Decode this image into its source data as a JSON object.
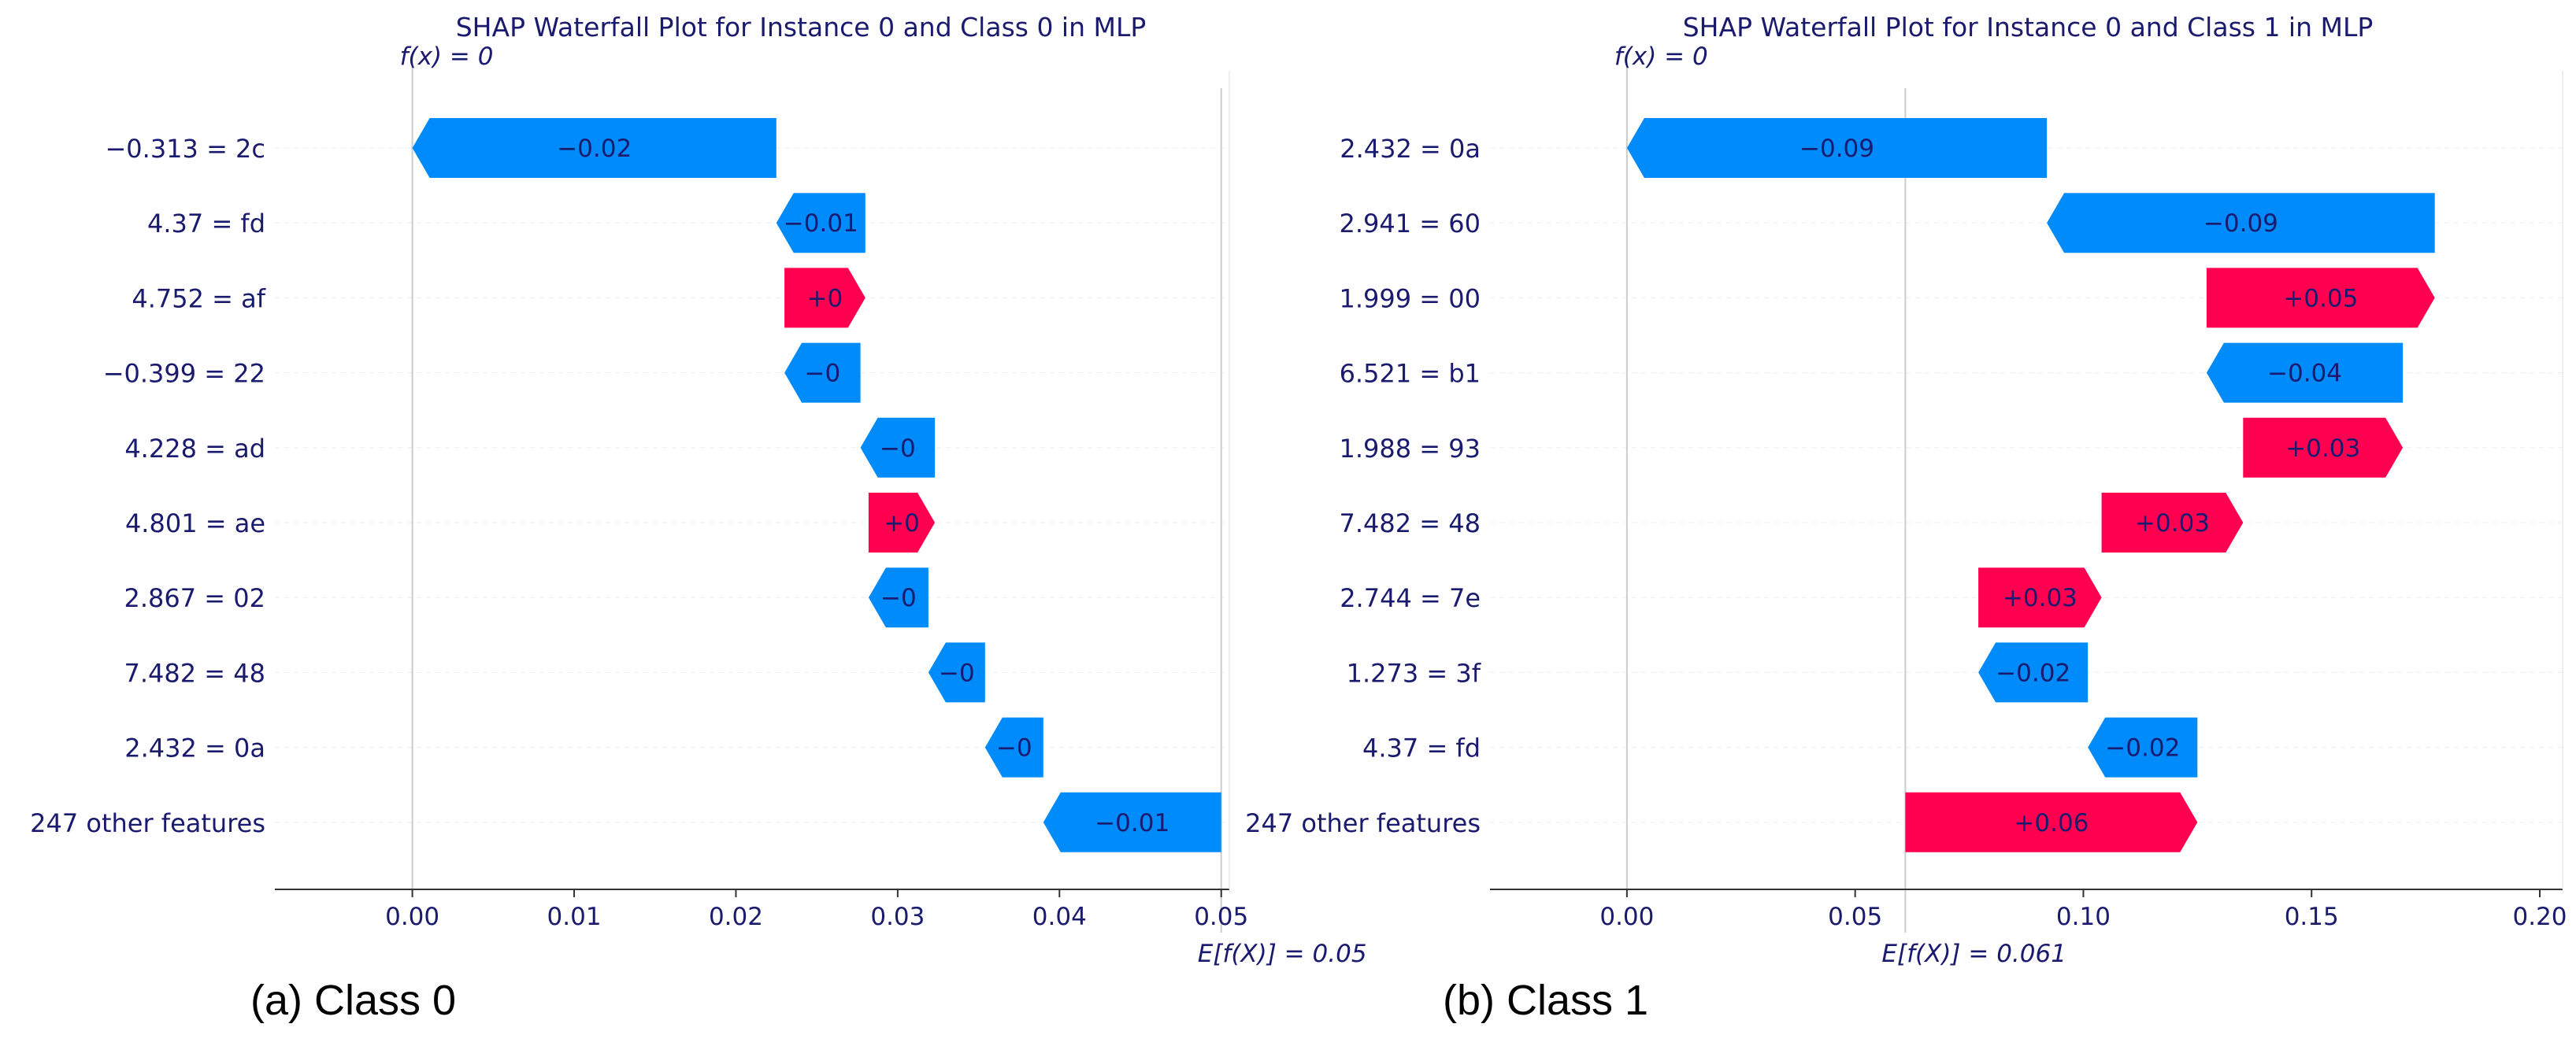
{
  "colors": {
    "negative": "#008bfb",
    "positive": "#ff0051",
    "text": "#1a1a6e",
    "gridline": "#eeeeee",
    "axis": "#333333"
  },
  "chart_data": [
    {
      "type": "waterfall",
      "title": "SHAP Waterfall Plot for Instance 0 and Class 0 in MLP",
      "fx_label": "f(x) = 0",
      "ex_label": "E[f(X)] = 0.05",
      "fx": 0.0,
      "base_value": 0.05,
      "xlim": [
        -0.0085,
        0.0505
      ],
      "xticks": [
        0.0,
        0.01,
        0.02,
        0.03,
        0.04,
        0.05
      ],
      "xtick_labels": [
        "0.00",
        "0.01",
        "0.02",
        "0.03",
        "0.04",
        "0.05"
      ],
      "features": [
        {
          "label": "−0.313 = 2c",
          "shap": -0.0225,
          "text": "−0.02"
        },
        {
          "label": "4.37 = fd",
          "shap": -0.0055,
          "text": "−0.01"
        },
        {
          "label": "4.752 = af",
          "shap": 0.005,
          "text": "+0"
        },
        {
          "label": "−0.399 = 22",
          "shap": -0.0047,
          "text": "−0"
        },
        {
          "label": "4.228 = ad",
          "shap": -0.0046,
          "text": "−0"
        },
        {
          "label": "4.801 = ae",
          "shap": 0.0041,
          "text": "+0"
        },
        {
          "label": "2.867 = 02",
          "shap": -0.0037,
          "text": "−0"
        },
        {
          "label": "7.482 = 48",
          "shap": -0.0035,
          "text": "−0"
        },
        {
          "label": "2.432 = 0a",
          "shap": -0.0036,
          "text": "−0"
        },
        {
          "label": "247 other features",
          "shap": -0.011,
          "text": "−0.01"
        }
      ]
    },
    {
      "type": "waterfall",
      "title": "SHAP Waterfall Plot for Instance 0 and Class 1 in MLP",
      "fx_label": "f(x) = 0",
      "ex_label": "E[f(X)] = 0.061",
      "fx": 0.0,
      "base_value": 0.061,
      "xlim": [
        -0.03,
        0.205
      ],
      "xticks": [
        0.0,
        0.05,
        0.1,
        0.15,
        0.2
      ],
      "xtick_labels": [
        "0.00",
        "0.05",
        "0.10",
        "0.15",
        "0.20"
      ],
      "features": [
        {
          "label": "2.432 = 0a",
          "shap": -0.092,
          "text": "−0.09"
        },
        {
          "label": "2.941 = 60",
          "shap": -0.085,
          "text": "−0.09"
        },
        {
          "label": "1.999 = 00",
          "shap": 0.05,
          "text": "+0.05"
        },
        {
          "label": "6.521 = b1",
          "shap": -0.043,
          "text": "−0.04"
        },
        {
          "label": "1.988 = 93",
          "shap": 0.035,
          "text": "+0.03"
        },
        {
          "label": "7.482 = 48",
          "shap": 0.031,
          "text": "+0.03"
        },
        {
          "label": "2.744 = 7e",
          "shap": 0.027,
          "text": "+0.03"
        },
        {
          "label": "1.273 = 3f",
          "shap": -0.024,
          "text": "−0.02"
        },
        {
          "label": "4.37 = fd",
          "shap": -0.024,
          "text": "−0.02"
        },
        {
          "label": "247 other features",
          "shap": 0.064,
          "text": "+0.06"
        }
      ]
    }
  ],
  "subcaptions": [
    "(a) Class 0",
    "(b) Class 1"
  ]
}
